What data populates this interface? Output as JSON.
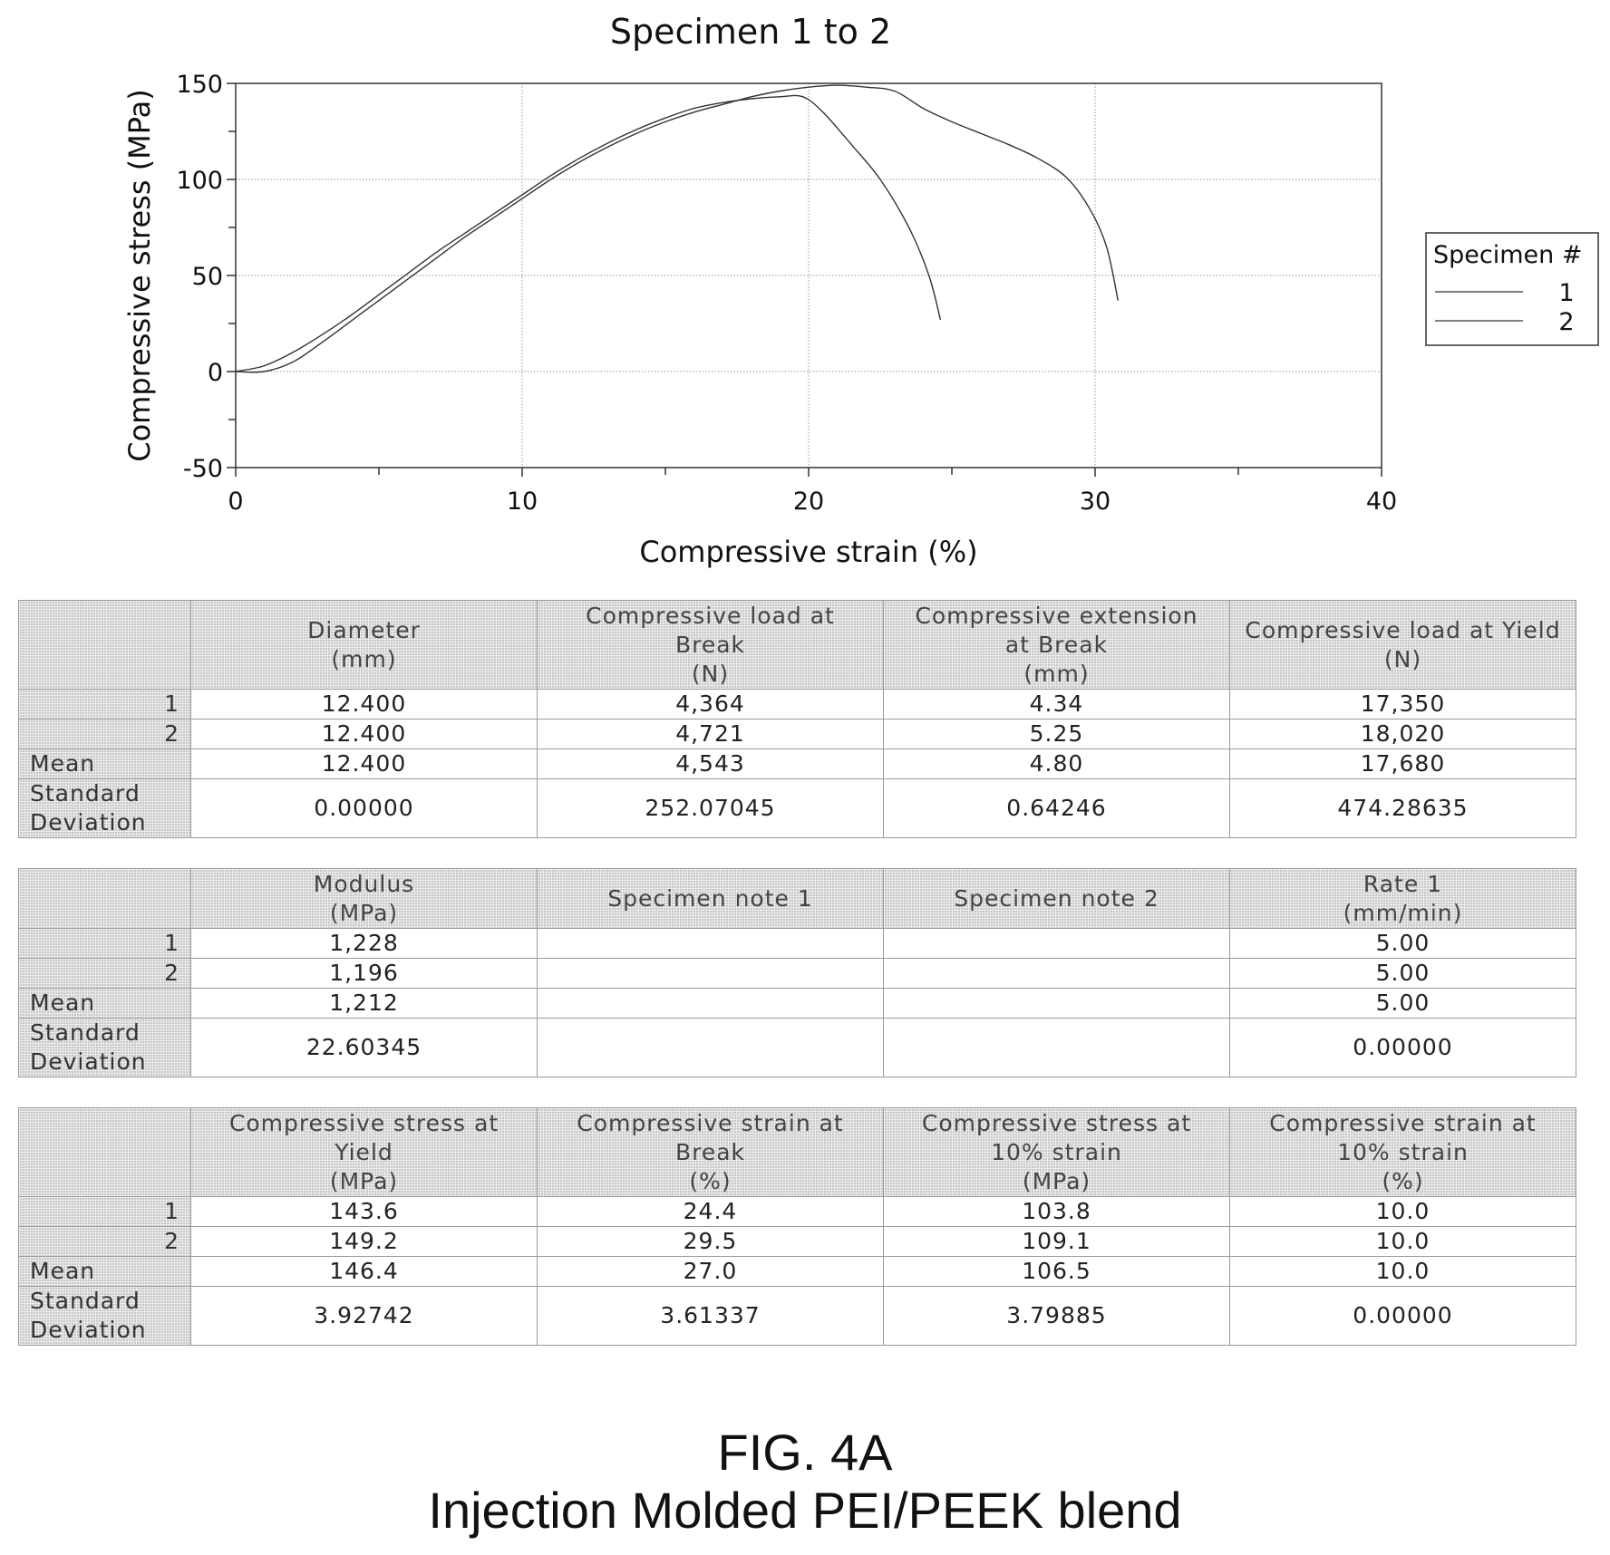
{
  "chart_data": {
    "type": "line",
    "title": "Specimen 1 to 2",
    "xlabel": "Compressive strain (%)",
    "ylabel": "Compressive stress (MPa)",
    "xlim": [
      0,
      40
    ],
    "ylim": [
      -50,
      150
    ],
    "xticks": [
      "0",
      "10",
      "20",
      "30",
      "40"
    ],
    "yticks": [
      "-50",
      "0",
      "50",
      "100",
      "150"
    ],
    "grid": true,
    "legend_title": "Specimen #",
    "legend_position": "right",
    "series": [
      {
        "name": "1",
        "x": [
          0,
          1,
          2,
          3,
          4,
          5,
          6,
          7,
          8,
          9,
          10,
          11,
          12,
          13,
          14,
          15,
          16,
          17,
          18,
          19,
          19.8,
          20.5,
          21.5,
          22.5,
          23.5,
          24.2,
          24.6
        ],
        "y": [
          0,
          3,
          10,
          19,
          29,
          40,
          51,
          62,
          72,
          82,
          92,
          102,
          111,
          119,
          126,
          132,
          137,
          140,
          142,
          143,
          143,
          135,
          118,
          100,
          75,
          50,
          27
        ]
      },
      {
        "name": "2",
        "x": [
          0,
          1,
          2,
          3,
          4,
          5,
          6,
          7,
          8,
          9,
          10,
          11,
          12,
          13,
          14,
          15,
          16,
          17,
          18,
          19,
          20,
          21,
          22,
          23,
          24,
          25,
          26,
          27,
          28,
          29,
          29.8,
          30.4,
          30.8
        ],
        "y": [
          0,
          0,
          5,
          15,
          26,
          37,
          48,
          59,
          70,
          80,
          90,
          100,
          109,
          117,
          124,
          130,
          135,
          139,
          143,
          146,
          148,
          149,
          148,
          146,
          137,
          130,
          124,
          118,
          111,
          101,
          85,
          65,
          37
        ]
      }
    ]
  },
  "tables": [
    {
      "headers": [
        [
          "Diameter",
          "(mm)"
        ],
        [
          "Compressive load at",
          "Break",
          "(N)"
        ],
        [
          "Compressive extension",
          "at Break",
          "(mm)"
        ],
        [
          "Compressive load at Yield",
          "(N)"
        ]
      ],
      "rows": [
        {
          "label": "1",
          "values": [
            "12.400",
            "4,364",
            "4.34",
            "17,350"
          ]
        },
        {
          "label": "2",
          "values": [
            "12.400",
            "4,721",
            "5.25",
            "18,020"
          ]
        },
        {
          "label": "Mean",
          "values": [
            "12.400",
            "4,543",
            "4.80",
            "17,680"
          ]
        },
        {
          "label": "Standard Deviation",
          "values": [
            "0.00000",
            "252.07045",
            "0.64246",
            "474.28635"
          ]
        }
      ]
    },
    {
      "headers": [
        [
          "Modulus",
          "(MPa)"
        ],
        [
          "Specimen note 1"
        ],
        [
          "Specimen note 2"
        ],
        [
          "Rate 1",
          "(mm/min)"
        ]
      ],
      "rows": [
        {
          "label": "1",
          "values": [
            "1,228",
            "",
            "",
            "5.00"
          ]
        },
        {
          "label": "2",
          "values": [
            "1,196",
            "",
            "",
            "5.00"
          ]
        },
        {
          "label": "Mean",
          "values": [
            "1,212",
            "",
            "",
            "5.00"
          ]
        },
        {
          "label": "Standard Deviation",
          "values": [
            "22.60345",
            "",
            "",
            "0.00000"
          ]
        }
      ]
    },
    {
      "headers": [
        [
          "Compressive stress at",
          "Yield",
          "(MPa)"
        ],
        [
          "Compressive strain at",
          "Break",
          "(%)"
        ],
        [
          "Compressive stress at",
          "10% strain",
          "(MPa)"
        ],
        [
          "Compressive strain at",
          "10% strain",
          "(%)"
        ]
      ],
      "rows": [
        {
          "label": "1",
          "values": [
            "143.6",
            "24.4",
            "103.8",
            "10.0"
          ]
        },
        {
          "label": "2",
          "values": [
            "149.2",
            "29.5",
            "109.1",
            "10.0"
          ]
        },
        {
          "label": "Mean",
          "values": [
            "146.4",
            "27.0",
            "106.5",
            "10.0"
          ]
        },
        {
          "label": "Standard Deviation",
          "values": [
            "3.92742",
            "3.61337",
            "3.79885",
            "0.00000"
          ]
        }
      ]
    }
  ],
  "figure": {
    "label": "FIG. 4A",
    "caption": "Injection Molded PEI/PEEK blend"
  }
}
